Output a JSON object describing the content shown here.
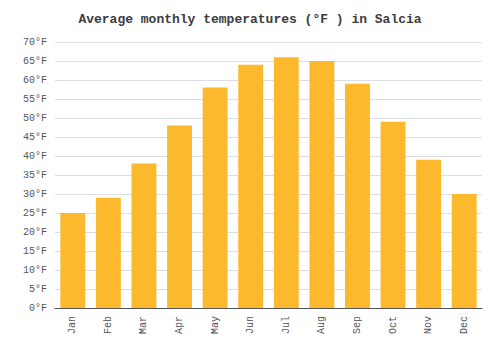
{
  "chart_data": {
    "type": "bar",
    "title": "Average monthly temperatures (°F ) in Salcia",
    "categories": [
      "Jan",
      "Feb",
      "Mar",
      "Apr",
      "May",
      "Jun",
      "Jul",
      "Aug",
      "Sep",
      "Oct",
      "Nov",
      "Dec"
    ],
    "values": [
      25,
      29,
      38,
      48,
      58,
      64,
      66,
      65,
      59,
      49,
      39,
      30
    ],
    "color": "#FDB92E",
    "ylim": [
      0,
      70
    ],
    "yticks": [
      {
        "value": 0,
        "label": "0°F"
      },
      {
        "value": 5,
        "label": "5°F"
      },
      {
        "value": 10,
        "label": "10°F"
      },
      {
        "value": 15,
        "label": "15°F"
      },
      {
        "value": 20,
        "label": "20°F"
      },
      {
        "value": 25,
        "label": "25°F"
      },
      {
        "value": 30,
        "label": "30°F"
      },
      {
        "value": 35,
        "label": "35°F"
      },
      {
        "value": 40,
        "label": "40°F"
      },
      {
        "value": 45,
        "label": "45°F"
      },
      {
        "value": 50,
        "label": "50°F"
      },
      {
        "value": 55,
        "label": "55°F"
      },
      {
        "value": 60,
        "label": "60°F"
      },
      {
        "value": 65,
        "label": "65°F"
      },
      {
        "value": 70,
        "label": "70°F"
      }
    ],
    "grid": true
  }
}
